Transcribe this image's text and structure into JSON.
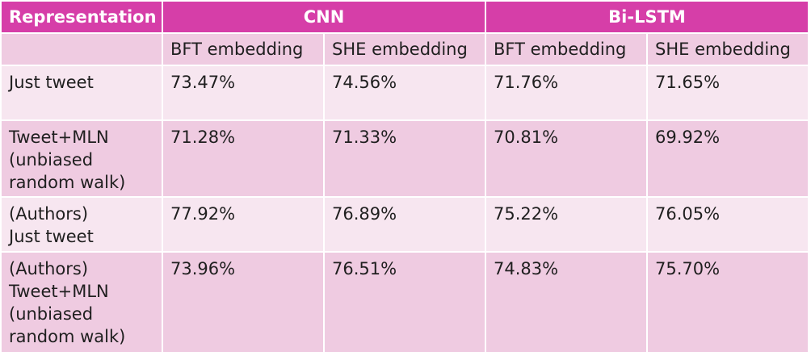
{
  "header": {
    "representation": "Representation",
    "cnn": "CNN",
    "bilstm": "Bi-LSTM"
  },
  "subheader": [
    "BFT embedding",
    "SHE embedding",
    "BFT embedding",
    "SHE embedding"
  ],
  "rows": [
    {
      "label": "Just tweet",
      "values": [
        "73.47%",
        "74.56%",
        "71.76%",
        "71.65%"
      ]
    },
    {
      "label": "Tweet+MLN\n(unbiased\nrandom walk)",
      "values": [
        "71.28%",
        "71.33%",
        "70.81%",
        "69.92%"
      ]
    },
    {
      "label": "(Authors)\nJust tweet",
      "values": [
        "77.92%",
        "76.89%",
        "75.22%",
        "76.05%"
      ]
    },
    {
      "label": "(Authors)\nTweet+MLN\n(unbiased\nrandom walk)",
      "values": [
        "73.96%",
        "76.51%",
        "74.83%",
        "75.70%"
      ]
    }
  ]
}
